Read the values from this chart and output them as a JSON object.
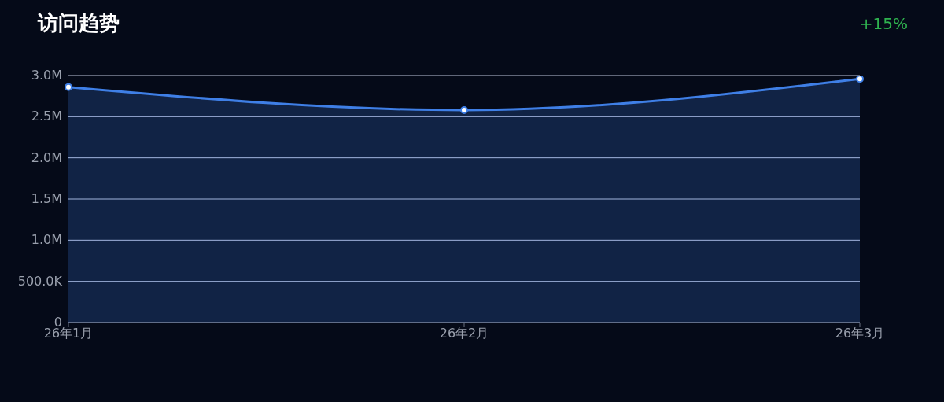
{
  "chart_data": {
    "type": "area",
    "title": "访问趋势",
    "annotations": [
      "+15%"
    ],
    "categories": [
      "26年1月",
      "26年2月",
      "26年3月"
    ],
    "series": [
      {
        "color": "#3f7fe6",
        "values": [
          2860000,
          2580000,
          2960000
        ]
      }
    ],
    "ylim": [
      0,
      3000000
    ],
    "yticks": [
      0,
      {
        "value": 500000,
        "label": "500.0K"
      },
      {
        "value": 1000000,
        "label": "1.0M"
      },
      {
        "value": 1500000,
        "label": "1.5M"
      },
      {
        "value": 2000000,
        "label": "2.0M"
      },
      {
        "value": 2500000,
        "label": "2.5M"
      },
      {
        "value": 3000000,
        "label": "3.0M"
      }
    ],
    "grid": "y",
    "legend": false,
    "marker": "circle",
    "line_style": "solid"
  }
}
